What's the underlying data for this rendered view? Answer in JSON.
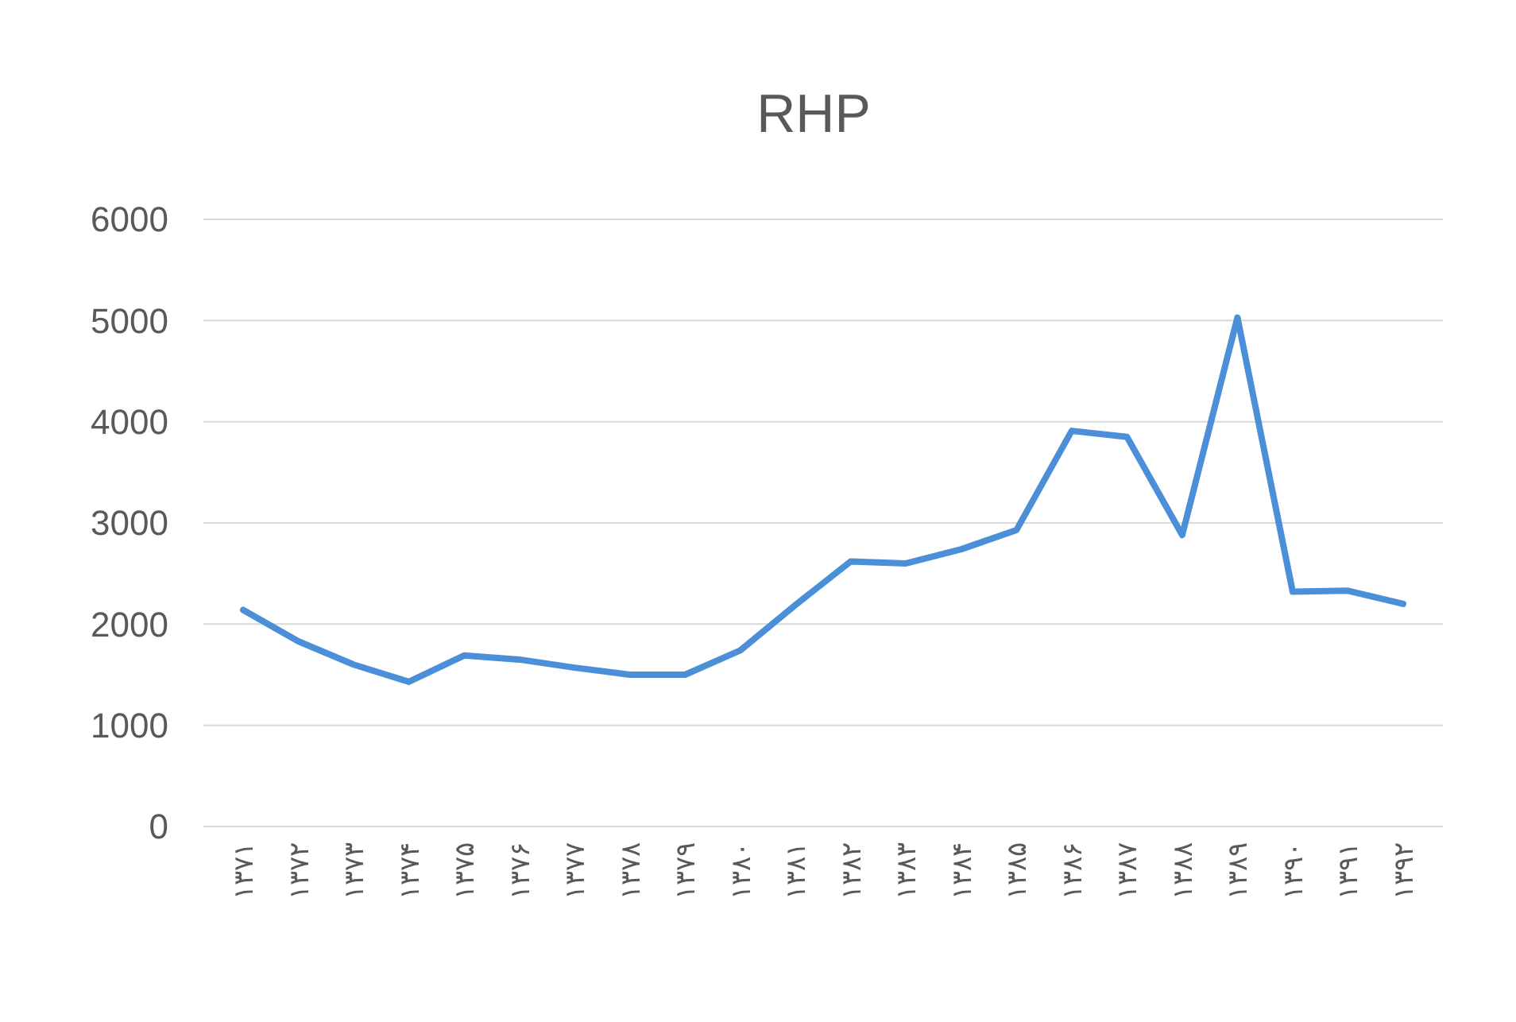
{
  "chart_data": {
    "type": "line",
    "title": "RHP",
    "categories": [
      "۱۳۷۱",
      "۱۳۷۲",
      "۱۳۷۳",
      "۱۳۷۴",
      "۱۳۷۵",
      "۱۳۷۶",
      "۱۳۷۷",
      "۱۳۷۸",
      "۱۳۷۹",
      "۱۳۸۰",
      "۱۳۸۱",
      "۱۳۸۲",
      "۱۳۸۳",
      "۱۳۸۴",
      "۱۳۸۵",
      "۱۳۸۶",
      "۱۳۸۷",
      "۱۳۸۸",
      "۱۳۸۹",
      "۱۳۹۰",
      "۱۳۹۱",
      "۱۳۹۲"
    ],
    "series": [
      {
        "color": "#4a8fd8",
        "values": [
          2140,
          1830,
          1600,
          1430,
          1690,
          1650,
          1570,
          1500,
          1500,
          1740,
          2190,
          2620,
          2600,
          2740,
          2930,
          3910,
          3850,
          2880,
          5030,
          2320,
          2330,
          2200
        ]
      }
    ],
    "ylim": [
      0,
      6000
    ],
    "yticks": [
      0,
      1000,
      2000,
      3000,
      4000,
      5000,
      6000
    ],
    "grid": "y",
    "marker": "none",
    "line_style": "solid"
  }
}
